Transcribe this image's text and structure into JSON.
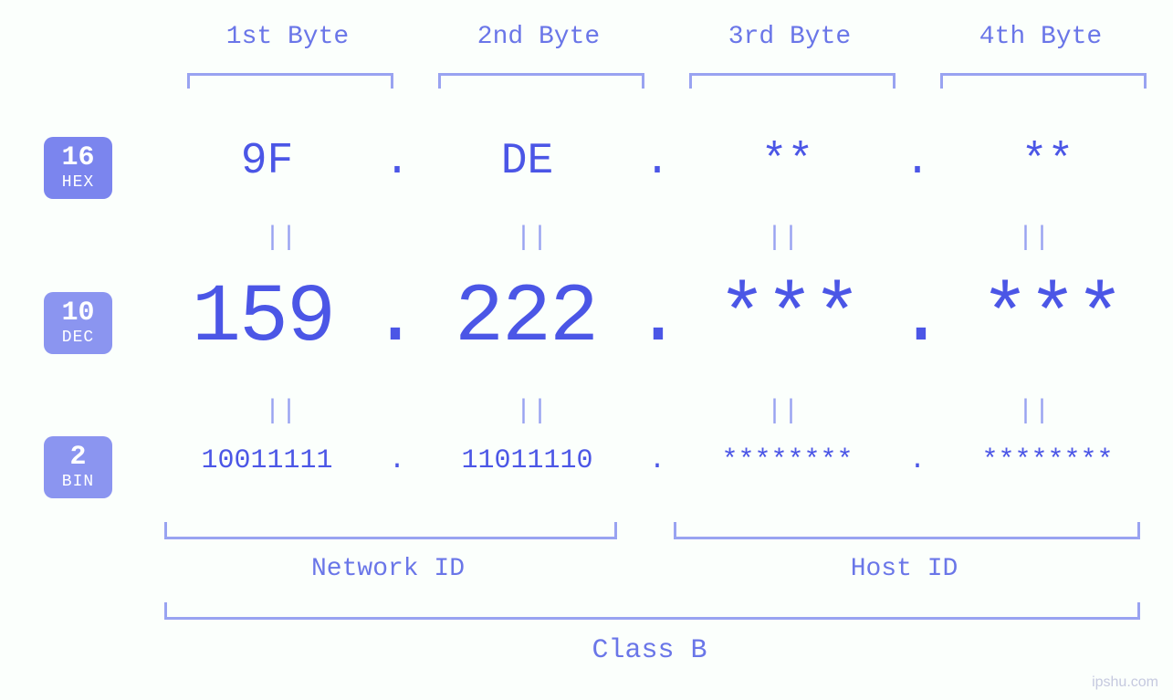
{
  "colors": {
    "background": "#fbfffc",
    "accent": "#4b56e6",
    "light": "#99a3f1",
    "badge": "#7b85ee"
  },
  "byte_headers": [
    "1st Byte",
    "2nd Byte",
    "3rd Byte",
    "4th Byte"
  ],
  "radix": {
    "hex": {
      "base": "16",
      "label": "HEX"
    },
    "dec": {
      "base": "10",
      "label": "DEC"
    },
    "bin": {
      "base": "2",
      "label": "BIN"
    }
  },
  "hex": [
    "9F",
    "DE",
    "**",
    "**"
  ],
  "dec": [
    "159",
    "222",
    "***",
    "***"
  ],
  "bin": [
    "10011111",
    "11011110",
    "********",
    "********"
  ],
  "eq": "||",
  "dot": ".",
  "groups": {
    "network": "Network ID",
    "host": "Host ID",
    "class": "Class B"
  },
  "watermark": "ipshu.com"
}
